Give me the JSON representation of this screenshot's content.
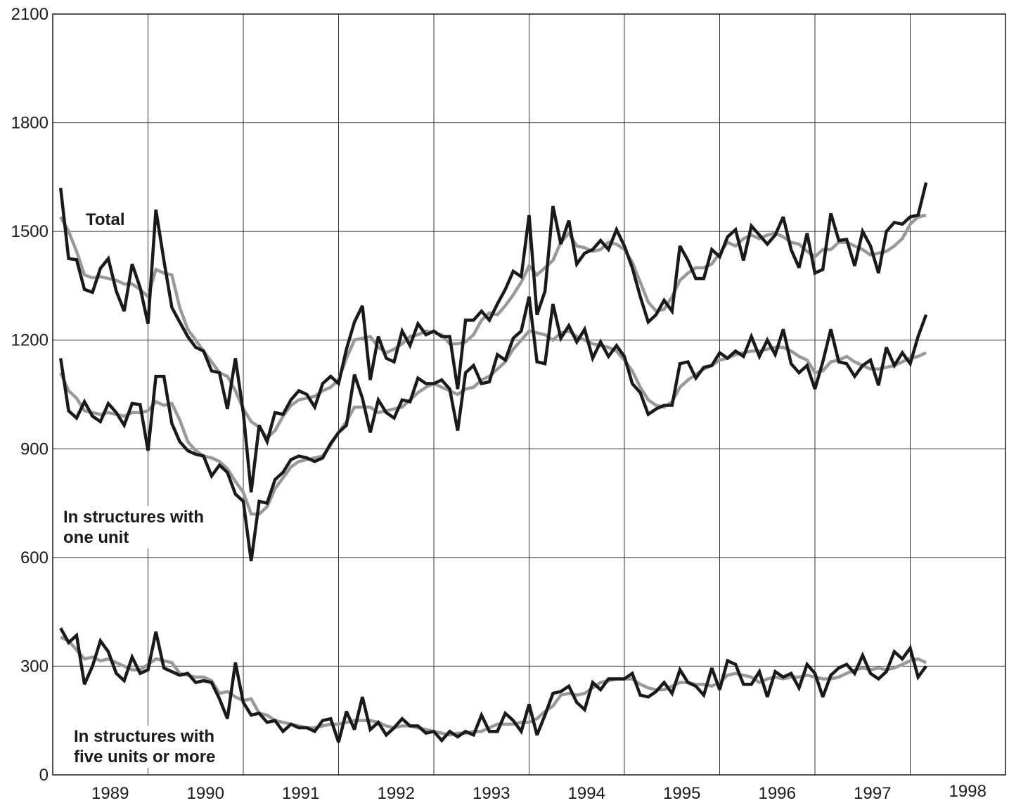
{
  "chart_data": {
    "type": "line",
    "x": [
      1989.083,
      1989.167,
      1989.25,
      1989.333,
      1989.417,
      1989.5,
      1989.583,
      1989.667,
      1989.75,
      1989.833,
      1989.917,
      1990,
      1990.083,
      1990.167,
      1990.25,
      1990.333,
      1990.417,
      1990.5,
      1990.583,
      1990.667,
      1990.75,
      1990.833,
      1990.917,
      1991,
      1991.083,
      1991.167,
      1991.25,
      1991.333,
      1991.417,
      1991.5,
      1991.583,
      1991.667,
      1991.75,
      1991.833,
      1991.917,
      1992,
      1992.083,
      1992.167,
      1992.25,
      1992.333,
      1992.417,
      1992.5,
      1992.583,
      1992.667,
      1992.75,
      1992.833,
      1992.917,
      1993,
      1993.083,
      1993.167,
      1993.25,
      1993.333,
      1993.417,
      1993.5,
      1993.583,
      1993.667,
      1993.75,
      1993.833,
      1993.917,
      1994,
      1994.083,
      1994.167,
      1994.25,
      1994.333,
      1994.417,
      1994.5,
      1994.583,
      1994.667,
      1994.75,
      1994.833,
      1994.917,
      1995,
      1995.083,
      1995.167,
      1995.25,
      1995.333,
      1995.417,
      1995.5,
      1995.583,
      1995.667,
      1995.75,
      1995.833,
      1995.917,
      1996,
      1996.083,
      1996.167,
      1996.25,
      1996.333,
      1996.417,
      1996.5,
      1996.583,
      1996.667,
      1996.75,
      1996.833,
      1996.917,
      1997,
      1997.083,
      1997.167,
      1997.25,
      1997.333,
      1997.417,
      1997.5,
      1997.583,
      1997.667,
      1997.75,
      1997.833,
      1997.917,
      1998,
      1998.083,
      1998.167
    ],
    "series": [
      {
        "color": "#999999",
        "values": [
          1540,
          1500,
          1445,
          1380,
          1372,
          1375,
          1370,
          1365,
          1355,
          1355,
          1340,
          1320,
          1395,
          1385,
          1380,
          1290,
          1230,
          1200,
          1170,
          1140,
          1110,
          1100,
          1060,
          1010,
          975,
          960,
          930,
          950,
          990,
          1020,
          1035,
          1040,
          1045,
          1060,
          1070,
          1090,
          1150,
          1200,
          1205,
          1210,
          1180,
          1165,
          1175,
          1190,
          1210,
          1215,
          1225,
          1220,
          1215,
          1190,
          1190,
          1195,
          1215,
          1255,
          1275,
          1270,
          1295,
          1325,
          1360,
          1405,
          1380,
          1400,
          1420,
          1470,
          1495,
          1460,
          1455,
          1445,
          1450,
          1470,
          1465,
          1450,
          1415,
          1360,
          1305,
          1280,
          1285,
          1320,
          1365,
          1385,
          1400,
          1400,
          1410,
          1440,
          1470,
          1460,
          1480,
          1490,
          1480,
          1490,
          1495,
          1485,
          1470,
          1465,
          1445,
          1430,
          1450,
          1450,
          1470,
          1470,
          1460,
          1450,
          1435,
          1440,
          1445,
          1460,
          1480,
          1520,
          1540,
          1545
        ]
      },
      {
        "color": "#999999",
        "values": [
          1110,
          1060,
          1040,
          1005,
          1000,
          995,
          1000,
          995,
          990,
          1000,
          1000,
          1005,
          1030,
          1020,
          1025,
          980,
          920,
          895,
          880,
          875,
          865,
          845,
          810,
          780,
          720,
          720,
          740,
          790,
          820,
          850,
          865,
          870,
          875,
          880,
          910,
          945,
          975,
          1015,
          1015,
          1015,
          1000,
          1005,
          1010,
          1015,
          1035,
          1055,
          1070,
          1080,
          1070,
          1060,
          1050,
          1065,
          1070,
          1090,
          1100,
          1120,
          1140,
          1175,
          1200,
          1225,
          1220,
          1215,
          1200,
          1220,
          1225,
          1210,
          1200,
          1190,
          1185,
          1180,
          1170,
          1145,
          1115,
          1070,
          1035,
          1020,
          1015,
          1030,
          1070,
          1090,
          1105,
          1120,
          1130,
          1145,
          1150,
          1160,
          1165,
          1170,
          1170,
          1175,
          1180,
          1180,
          1170,
          1155,
          1145,
          1110,
          1115,
          1140,
          1145,
          1155,
          1140,
          1130,
          1120,
          1120,
          1125,
          1130,
          1140,
          1150,
          1155,
          1165
        ]
      },
      {
        "color": "#999999",
        "values": [
          380,
          370,
          345,
          320,
          325,
          315,
          320,
          310,
          300,
          290,
          290,
          305,
          320,
          315,
          310,
          280,
          275,
          270,
          270,
          260,
          225,
          230,
          215,
          205,
          210,
          170,
          165,
          150,
          145,
          140,
          135,
          130,
          130,
          135,
          140,
          140,
          145,
          150,
          150,
          150,
          145,
          135,
          130,
          135,
          135,
          130,
          125,
          120,
          115,
          110,
          115,
          115,
          120,
          120,
          130,
          140,
          140,
          140,
          145,
          145,
          155,
          175,
          190,
          220,
          225,
          220,
          225,
          240,
          255,
          260,
          265,
          265,
          265,
          250,
          240,
          235,
          235,
          245,
          255,
          255,
          250,
          250,
          245,
          255,
          275,
          280,
          275,
          270,
          255,
          265,
          270,
          265,
          270,
          270,
          275,
          270,
          265,
          265,
          270,
          280,
          290,
          295,
          290,
          295,
          290,
          295,
          305,
          315,
          320,
          310
        ]
      },
      {
        "color": "#1a1a1a",
        "values": [
          1620,
          1425,
          1422,
          1340,
          1332,
          1398,
          1425,
          1335,
          1280,
          1410,
          1345,
          1245,
          1560,
          1420,
          1290,
          1250,
          1210,
          1180,
          1170,
          1115,
          1110,
          1010,
          1150,
          1000,
          780,
          965,
          920,
          1000,
          995,
          1035,
          1060,
          1050,
          1015,
          1080,
          1100,
          1080,
          1175,
          1250,
          1295,
          1090,
          1210,
          1150,
          1140,
          1225,
          1185,
          1245,
          1215,
          1225,
          1210,
          1210,
          1065,
          1255,
          1255,
          1280,
          1255,
          1300,
          1340,
          1390,
          1375,
          1545,
          1270,
          1335,
          1570,
          1465,
          1530,
          1410,
          1440,
          1450,
          1475,
          1450,
          1505,
          1460,
          1400,
          1320,
          1250,
          1270,
          1310,
          1280,
          1460,
          1420,
          1370,
          1370,
          1450,
          1430,
          1485,
          1505,
          1420,
          1515,
          1490,
          1465,
          1490,
          1540,
          1450,
          1400,
          1495,
          1385,
          1395,
          1550,
          1475,
          1478,
          1405,
          1500,
          1460,
          1385,
          1500,
          1525,
          1520,
          1540,
          1545,
          1635
        ]
      },
      {
        "color": "#1a1a1a",
        "values": [
          1150,
          1005,
          985,
          1030,
          990,
          975,
          1025,
          1000,
          965,
          1025,
          1022,
          895,
          1100,
          1100,
          970,
          920,
          895,
          885,
          880,
          825,
          855,
          835,
          775,
          755,
          590,
          755,
          750,
          815,
          835,
          870,
          880,
          875,
          865,
          875,
          915,
          945,
          965,
          1105,
          1040,
          945,
          1035,
          1000,
          985,
          1035,
          1030,
          1095,
          1080,
          1080,
          1090,
          1065,
          950,
          1110,
          1130,
          1080,
          1085,
          1160,
          1145,
          1205,
          1225,
          1320,
          1140,
          1135,
          1300,
          1205,
          1240,
          1195,
          1230,
          1150,
          1195,
          1155,
          1185,
          1155,
          1080,
          1055,
          995,
          1010,
          1020,
          1020,
          1135,
          1140,
          1095,
          1125,
          1130,
          1165,
          1150,
          1170,
          1155,
          1210,
          1155,
          1200,
          1160,
          1230,
          1135,
          1110,
          1130,
          1065,
          1140,
          1230,
          1140,
          1135,
          1100,
          1130,
          1145,
          1075,
          1180,
          1130,
          1165,
          1135,
          1210,
          1270
        ]
      },
      {
        "color": "#1a1a1a",
        "values": [
          405,
          365,
          385,
          250,
          300,
          370,
          340,
          280,
          260,
          325,
          280,
          290,
          395,
          295,
          285,
          275,
          280,
          255,
          260,
          255,
          210,
          155,
          310,
          200,
          165,
          170,
          145,
          150,
          120,
          140,
          130,
          130,
          120,
          150,
          155,
          90,
          175,
          125,
          215,
          125,
          145,
          110,
          130,
          155,
          135,
          135,
          115,
          120,
          95,
          120,
          105,
          120,
          110,
          165,
          120,
          120,
          170,
          150,
          120,
          195,
          110,
          165,
          225,
          230,
          245,
          200,
          180,
          255,
          235,
          265,
          265,
          265,
          280,
          220,
          215,
          230,
          255,
          225,
          290,
          255,
          245,
          220,
          295,
          235,
          315,
          305,
          250,
          250,
          285,
          215,
          285,
          270,
          280,
          240,
          305,
          280,
          215,
          275,
          295,
          305,
          280,
          330,
          280,
          265,
          285,
          340,
          320,
          350,
          270,
          300
        ]
      }
    ],
    "annotations": [
      [
        "Total"
      ],
      [
        "In structures with",
        "one unit"
      ],
      [
        "In structures with",
        "five units or more"
      ]
    ],
    "xlim": [
      1989,
      1999
    ],
    "xticks": [
      1989,
      1990,
      1991,
      1992,
      1993,
      1994,
      1995,
      1996,
      1997,
      1998
    ],
    "ylim": [
      0,
      2100
    ],
    "yticks": [
      0,
      300,
      600,
      900,
      1200,
      1500,
      1800,
      2100
    ],
    "grid": true
  }
}
